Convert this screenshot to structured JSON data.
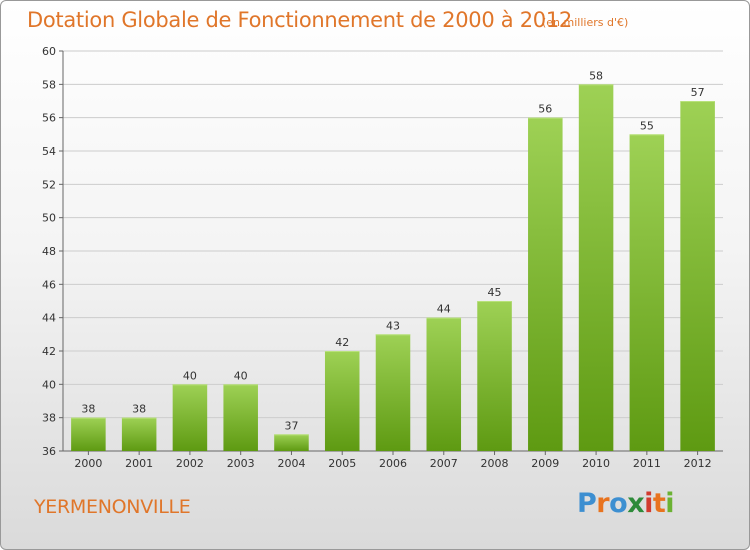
{
  "header": {
    "title": "Dotation Globale de Fonctionnement de 2000 à 2012",
    "unit": "(en milliers d'€)"
  },
  "footer": {
    "commune": "YERMENONVILLE",
    "logo": "Proxiti"
  },
  "colors": {
    "title": "#e0762a",
    "bar_top": "#9ed155",
    "bar_bottom": "#5e9a12",
    "grid": "#cccccc",
    "logo_letters": [
      "#3d8fd1",
      "#e8731f",
      "#3d8fd1",
      "#2e8b3a",
      "#d23b2f",
      "#e8731f",
      "#6bb233"
    ]
  },
  "chart_data": {
    "type": "bar",
    "title": "Dotation Globale de Fonctionnement de 2000 à 2012",
    "xlabel": "",
    "ylabel": "",
    "categories": [
      "2000",
      "2001",
      "2002",
      "2003",
      "2004",
      "2005",
      "2006",
      "2007",
      "2008",
      "2009",
      "2010",
      "2011",
      "2012"
    ],
    "values": [
      38,
      38,
      40,
      40,
      37,
      42,
      43,
      44,
      45,
      56,
      58,
      55,
      57
    ],
    "ylim": [
      36,
      60
    ],
    "yticks": [
      36,
      38,
      40,
      42,
      44,
      46,
      48,
      50,
      52,
      54,
      56,
      58,
      60
    ],
    "grid": true,
    "legend": "none"
  }
}
